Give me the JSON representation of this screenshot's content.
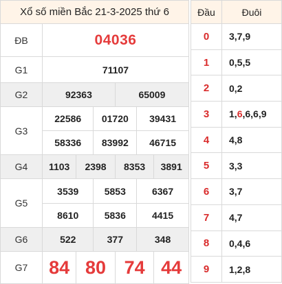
{
  "header": {
    "title": "Xổ số miền Bắc 21-3-2025 thứ 6"
  },
  "labels": {
    "db": "ĐB",
    "g1": "G1",
    "g2": "G2",
    "g3": "G3",
    "g4": "G4",
    "g5": "G5",
    "g6": "G6",
    "g7": "G7"
  },
  "prizes": {
    "db": "04036",
    "g1": "71107",
    "g2": [
      "92363",
      "65009"
    ],
    "g3": [
      "22586",
      "01720",
      "39431",
      "58336",
      "83992",
      "46715"
    ],
    "g4": [
      "1103",
      "2398",
      "8353",
      "3891"
    ],
    "g5": [
      "3539",
      "5853",
      "6367",
      "8610",
      "5836",
      "4415"
    ],
    "g6": [
      "522",
      "377",
      "348"
    ],
    "g7": [
      "84",
      "80",
      "74",
      "44"
    ]
  },
  "loto": {
    "head_label": "Đầu",
    "tail_label": "Đuôi",
    "rows": [
      {
        "dau": "0",
        "duoi": "3,7,9"
      },
      {
        "dau": "1",
        "duoi": "0,5,5"
      },
      {
        "dau": "2",
        "duoi": "0,2"
      },
      {
        "dau": "3",
        "duoi_pre": "1,",
        "duoi_hl": "6",
        "duoi_post": ",6,6,9"
      },
      {
        "dau": "4",
        "duoi": "4,8"
      },
      {
        "dau": "5",
        "duoi": "3,3"
      },
      {
        "dau": "6",
        "duoi": "3,7"
      },
      {
        "dau": "7",
        "duoi": "4,7"
      },
      {
        "dau": "8",
        "duoi": "0,4,6"
      },
      {
        "dau": "9",
        "duoi": "1,2,8"
      }
    ]
  },
  "colors": {
    "accent_red": "#e53b3b",
    "header_bg": "#fff4e8",
    "row_shade": "#efefef"
  }
}
